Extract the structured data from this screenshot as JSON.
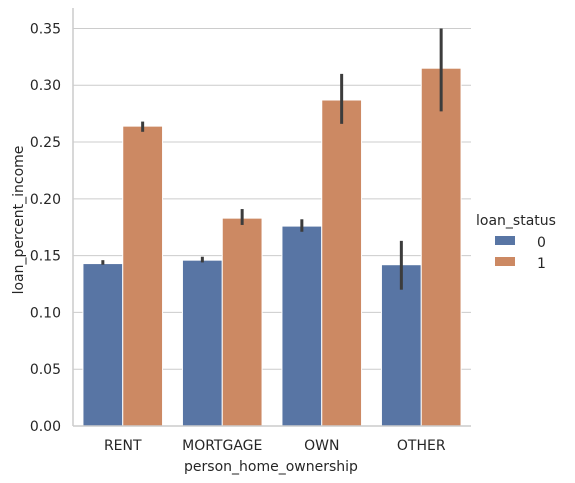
{
  "chart_data": {
    "type": "bar",
    "xlabel": "person_home_ownership",
    "ylabel": "loan_percent_income",
    "categories": [
      "RENT",
      "MORTGAGE",
      "OWN",
      "OTHER"
    ],
    "ylim": [
      0,
      0.368
    ],
    "yticks": [
      "0.00",
      "0.05",
      "0.10",
      "0.15",
      "0.20",
      "0.25",
      "0.30",
      "0.35"
    ],
    "grid": true,
    "legend": {
      "title": "loan_status",
      "placement": "right",
      "entries": [
        "0",
        "1"
      ]
    },
    "series": [
      {
        "name": "0",
        "color": "#5875a4",
        "values": [
          0.143,
          0.146,
          0.176,
          0.142
        ],
        "ci_low": [
          0.142,
          0.144,
          0.171,
          0.12
        ],
        "ci_high": [
          0.146,
          0.149,
          0.182,
          0.163
        ]
      },
      {
        "name": "1",
        "color": "#cc8963",
        "values": [
          0.264,
          0.183,
          0.287,
          0.315
        ],
        "ci_low": [
          0.259,
          0.177,
          0.266,
          0.277
        ],
        "ci_high": [
          0.268,
          0.191,
          0.31,
          0.35
        ]
      }
    ],
    "errorbar_color": "#3c3c3c"
  }
}
